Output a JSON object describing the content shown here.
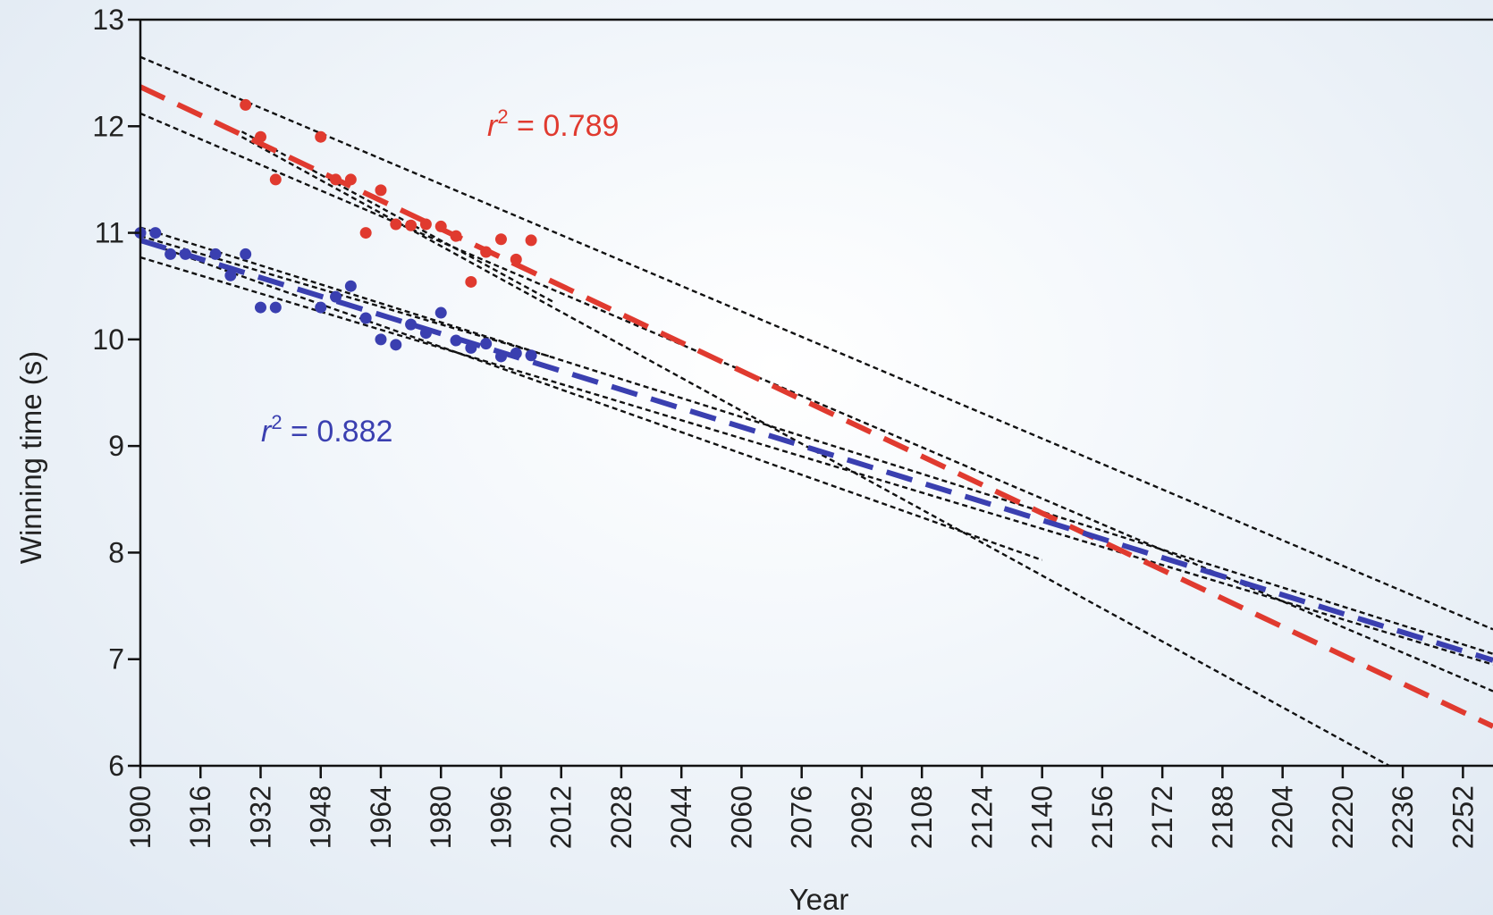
{
  "chart_data": {
    "type": "scatter",
    "xlabel": "Year",
    "ylabel": "Winning time (s)",
    "xlim": [
      1900,
      2260
    ],
    "ylim": [
      6,
      13
    ],
    "x_ticks": [
      1900,
      1916,
      1932,
      1948,
      1964,
      1980,
      1996,
      2012,
      2028,
      2044,
      2060,
      2076,
      2092,
      2108,
      2124,
      2140,
      2156,
      2172,
      2188,
      2204,
      2220,
      2236,
      2252
    ],
    "y_ticks": [
      6,
      7,
      8,
      9,
      10,
      11,
      12,
      13
    ],
    "grid": false,
    "series": [
      {
        "color": "#e03a2f",
        "annotation": {
          "prefix": "r",
          "exponent": "2",
          "text": " = 0.789"
        },
        "points": [
          {
            "x": 1928,
            "y": 12.2
          },
          {
            "x": 1932,
            "y": 11.9
          },
          {
            "x": 1936,
            "y": 11.5
          },
          {
            "x": 1948,
            "y": 11.9
          },
          {
            "x": 1952,
            "y": 11.5
          },
          {
            "x": 1956,
            "y": 11.5
          },
          {
            "x": 1960,
            "y": 11.0
          },
          {
            "x": 1964,
            "y": 11.4
          },
          {
            "x": 1968,
            "y": 11.08
          },
          {
            "x": 1972,
            "y": 11.07
          },
          {
            "x": 1976,
            "y": 11.08
          },
          {
            "x": 1980,
            "y": 11.06
          },
          {
            "x": 1984,
            "y": 10.97
          },
          {
            "x": 1988,
            "y": 10.54
          },
          {
            "x": 1992,
            "y": 10.82
          },
          {
            "x": 1996,
            "y": 10.94
          },
          {
            "x": 2000,
            "y": 10.75
          },
          {
            "x": 2004,
            "y": 10.93
          }
        ],
        "fit": {
          "x": [
            1900,
            2260
          ],
          "y": [
            12.37,
            6.37
          ]
        }
      },
      {
        "color": "#3a3fb0",
        "annotation": {
          "prefix": "r",
          "exponent": "2",
          "text": " = 0.882"
        },
        "points": [
          {
            "x": 1900,
            "y": 11.0
          },
          {
            "x": 1904,
            "y": 11.0
          },
          {
            "x": 1908,
            "y": 10.8
          },
          {
            "x": 1912,
            "y": 10.8
          },
          {
            "x": 1920,
            "y": 10.8
          },
          {
            "x": 1924,
            "y": 10.6
          },
          {
            "x": 1928,
            "y": 10.8
          },
          {
            "x": 1932,
            "y": 10.3
          },
          {
            "x": 1936,
            "y": 10.3
          },
          {
            "x": 1948,
            "y": 10.3
          },
          {
            "x": 1952,
            "y": 10.4
          },
          {
            "x": 1956,
            "y": 10.5
          },
          {
            "x": 1960,
            "y": 10.2
          },
          {
            "x": 1964,
            "y": 10.0
          },
          {
            "x": 1968,
            "y": 9.95
          },
          {
            "x": 1972,
            "y": 10.14
          },
          {
            "x": 1976,
            "y": 10.06
          },
          {
            "x": 1980,
            "y": 10.25
          },
          {
            "x": 1984,
            "y": 9.99
          },
          {
            "x": 1988,
            "y": 9.92
          },
          {
            "x": 1992,
            "y": 9.96
          },
          {
            "x": 1996,
            "y": 9.84
          },
          {
            "x": 2000,
            "y": 9.87
          },
          {
            "x": 2004,
            "y": 9.85
          }
        ],
        "fit": {
          "x": [
            1900,
            2260
          ],
          "y": [
            10.93,
            6.99
          ]
        }
      }
    ],
    "confidence_lines": [
      {
        "x": [
          1900,
          2260
        ],
        "y": [
          12.65,
          7.28
        ]
      },
      {
        "x": [
          1900,
          2260
        ],
        "y": [
          12.12,
          6.7
        ]
      },
      {
        "x": [
          1927,
          2010
        ],
        "y": [
          11.95,
          10.35
        ]
      },
      {
        "x": [
          1927,
          2236
        ],
        "y": [
          11.9,
          5.93
        ]
      },
      {
        "x": [
          1900,
          2260
        ],
        "y": [
          11.05,
          7.05
        ]
      },
      {
        "x": [
          1900,
          2260
        ],
        "y": [
          10.77,
          6.95
        ]
      },
      {
        "x": [
          1900,
          2010
        ],
        "y": [
          10.97,
          9.83
        ]
      },
      {
        "x": [
          1900,
          2140
        ],
        "y": [
          10.93,
          7.93
        ]
      }
    ]
  }
}
